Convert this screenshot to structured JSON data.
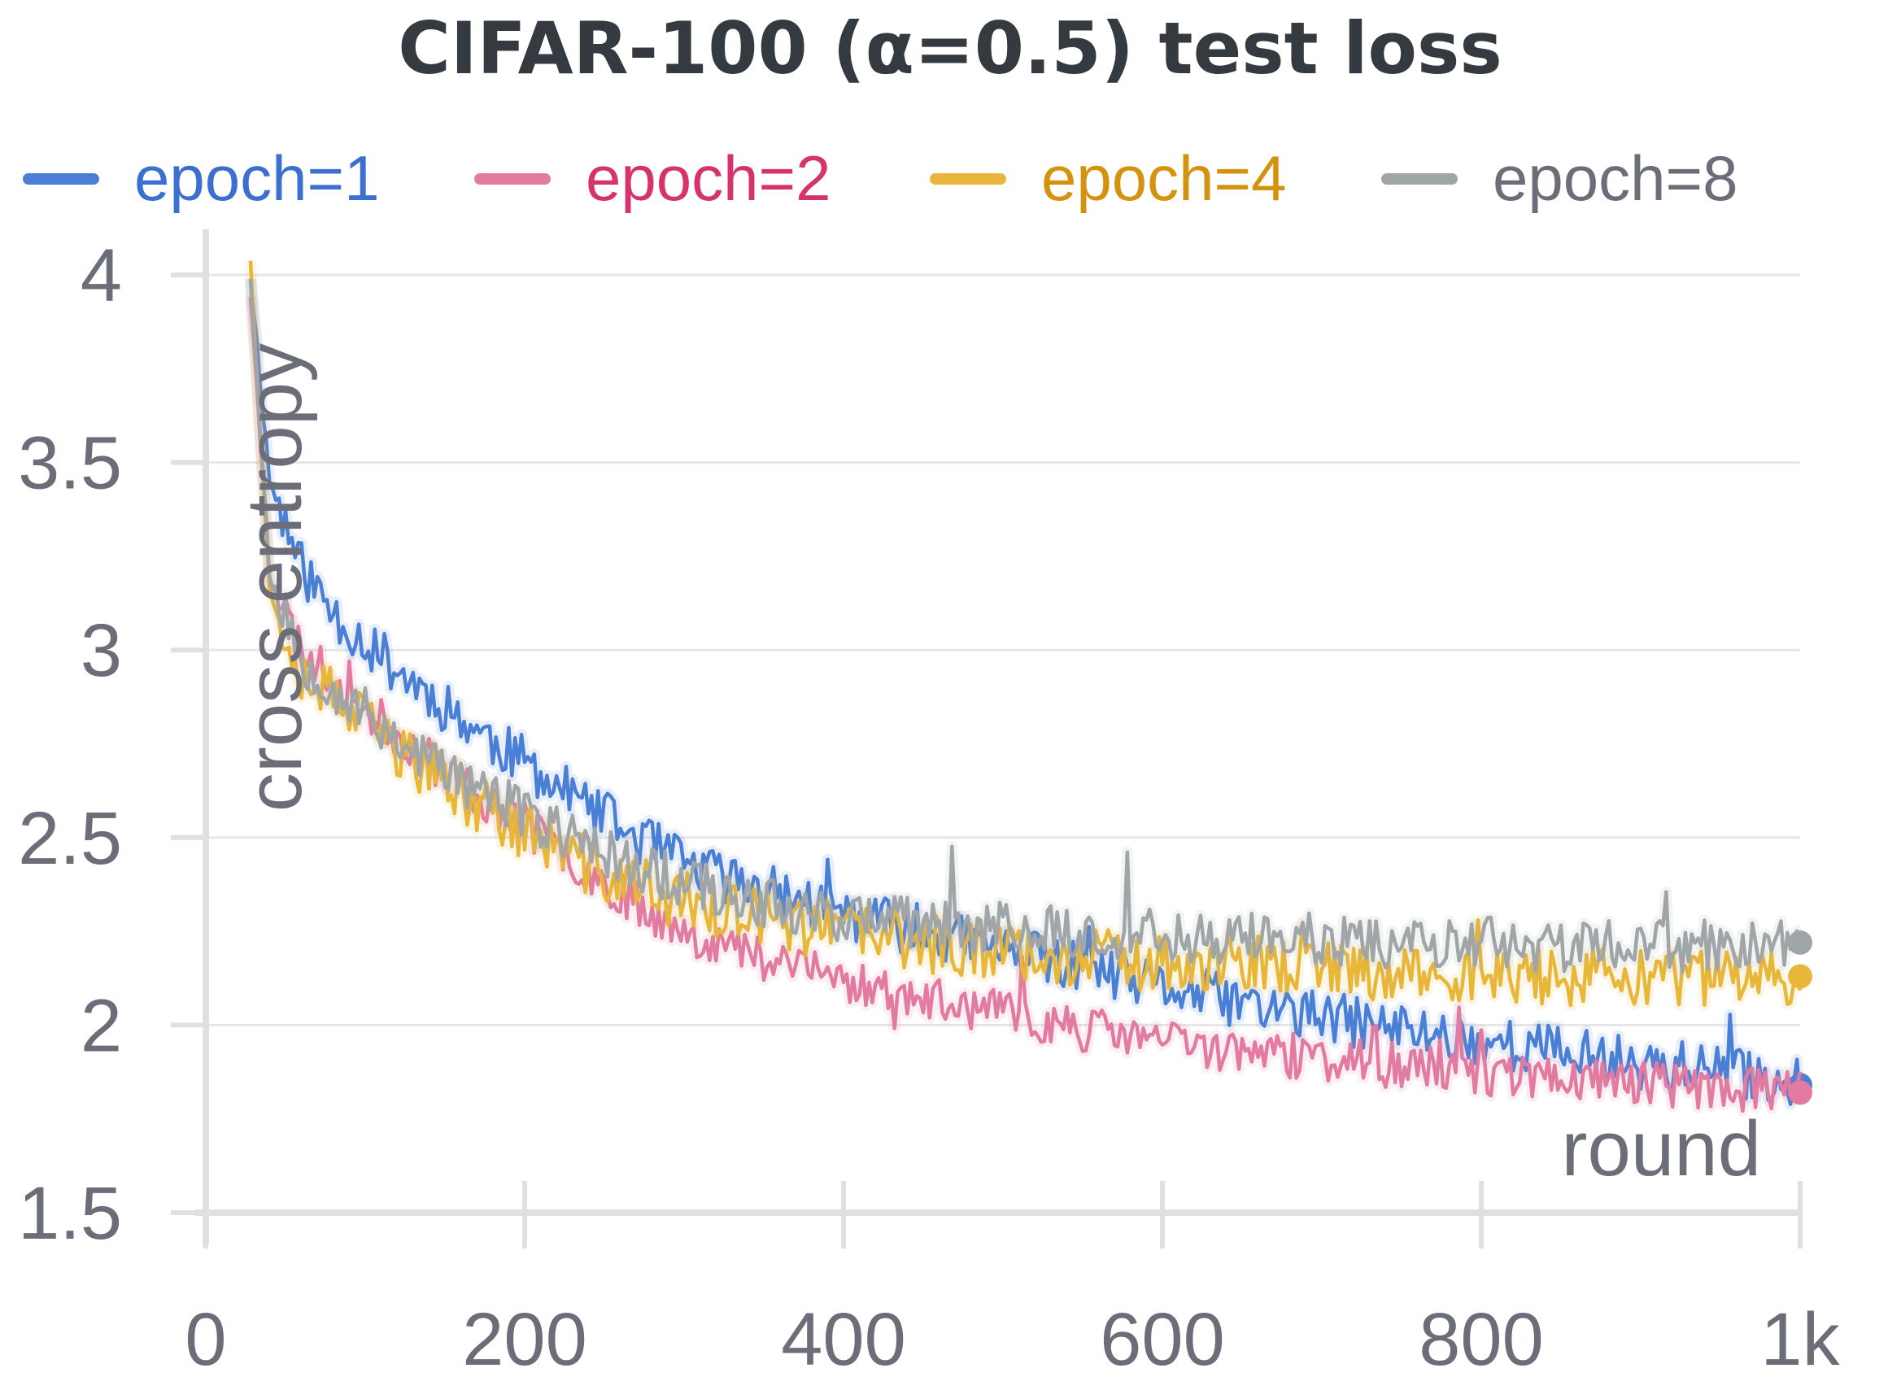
{
  "chart_data": {
    "type": "line",
    "title": "CIFAR-100 (α=0.5) test loss",
    "xlabel": "round",
    "ylabel": "cross entropy",
    "xlim": [
      0,
      1000
    ],
    "ylim": [
      1.5,
      4.1
    ],
    "xticks": [
      {
        "value": 0,
        "label": "0"
      },
      {
        "value": 200,
        "label": "200"
      },
      {
        "value": 400,
        "label": "400"
      },
      {
        "value": 600,
        "label": "600"
      },
      {
        "value": 800,
        "label": "800"
      },
      {
        "value": 1000,
        "label": "1k"
      }
    ],
    "yticks": [
      {
        "value": 1.5,
        "label": "1.5"
      },
      {
        "value": 2,
        "label": "2"
      },
      {
        "value": 2.5,
        "label": "2.5"
      },
      {
        "value": 3,
        "label": "3"
      },
      {
        "value": 3.5,
        "label": "3.5"
      },
      {
        "value": 4,
        "label": "4"
      }
    ],
    "grid": true,
    "legend_position": "top",
    "series": [
      {
        "name": "epoch=1",
        "color": "#4a7fd6",
        "label_color": "#3b6fd0",
        "x": [
          28,
          40,
          60,
          80,
          100,
          125,
          150,
          175,
          200,
          250,
          300,
          350,
          400,
          450,
          500,
          550,
          600,
          650,
          700,
          750,
          800,
          850,
          900,
          950,
          1000
        ],
        "y": [
          4.0,
          3.45,
          3.22,
          3.1,
          3.02,
          2.93,
          2.85,
          2.77,
          2.7,
          2.55,
          2.43,
          2.36,
          2.3,
          2.25,
          2.2,
          2.15,
          2.1,
          2.06,
          2.02,
          1.99,
          1.96,
          1.93,
          1.9,
          1.88,
          1.84
        ],
        "noise": 0.07,
        "seed": 11
      },
      {
        "name": "epoch=2",
        "color": "#e37aa0",
        "label_color": "#d6336c",
        "x": [
          28,
          40,
          60,
          80,
          100,
          125,
          150,
          175,
          200,
          250,
          300,
          350,
          400,
          450,
          500,
          550,
          600,
          650,
          700,
          750,
          800,
          850,
          900,
          950,
          1000
        ],
        "y": [
          3.95,
          3.2,
          3.0,
          2.92,
          2.84,
          2.76,
          2.68,
          2.6,
          2.53,
          2.38,
          2.25,
          2.18,
          2.12,
          2.07,
          2.03,
          1.99,
          1.96,
          1.93,
          1.91,
          1.89,
          1.87,
          1.86,
          1.85,
          1.83,
          1.82
        ],
        "noise": 0.06,
        "seed": 23
      },
      {
        "name": "epoch=4",
        "color": "#e8b73a",
        "label_color": "#d4930f",
        "x": [
          28,
          40,
          60,
          80,
          100,
          125,
          150,
          175,
          200,
          250,
          300,
          350,
          400,
          450,
          500,
          550,
          600,
          650,
          700,
          750,
          800,
          850,
          900,
          950,
          1000
        ],
        "y": [
          4.05,
          3.15,
          2.95,
          2.87,
          2.8,
          2.72,
          2.65,
          2.58,
          2.52,
          2.4,
          2.33,
          2.28,
          2.25,
          2.22,
          2.2,
          2.18,
          2.17,
          2.16,
          2.15,
          2.14,
          2.13,
          2.13,
          2.12,
          2.12,
          2.13
        ],
        "noise": 0.08,
        "seed": 37
      },
      {
        "name": "epoch=8",
        "color": "#a0a5a8",
        "label_color": "#6b6d78",
        "x": [
          28,
          40,
          60,
          80,
          100,
          125,
          150,
          175,
          200,
          250,
          300,
          350,
          400,
          450,
          500,
          550,
          600,
          650,
          700,
          750,
          800,
          850,
          900,
          950,
          1000
        ],
        "y": [
          4.0,
          3.2,
          2.98,
          2.9,
          2.83,
          2.75,
          2.68,
          2.62,
          2.56,
          2.46,
          2.38,
          2.33,
          2.29,
          2.27,
          2.26,
          2.25,
          2.24,
          2.23,
          2.23,
          2.22,
          2.22,
          2.21,
          2.21,
          2.21,
          2.22
        ],
        "noise": 0.07,
        "seed": 53
      }
    ]
  }
}
